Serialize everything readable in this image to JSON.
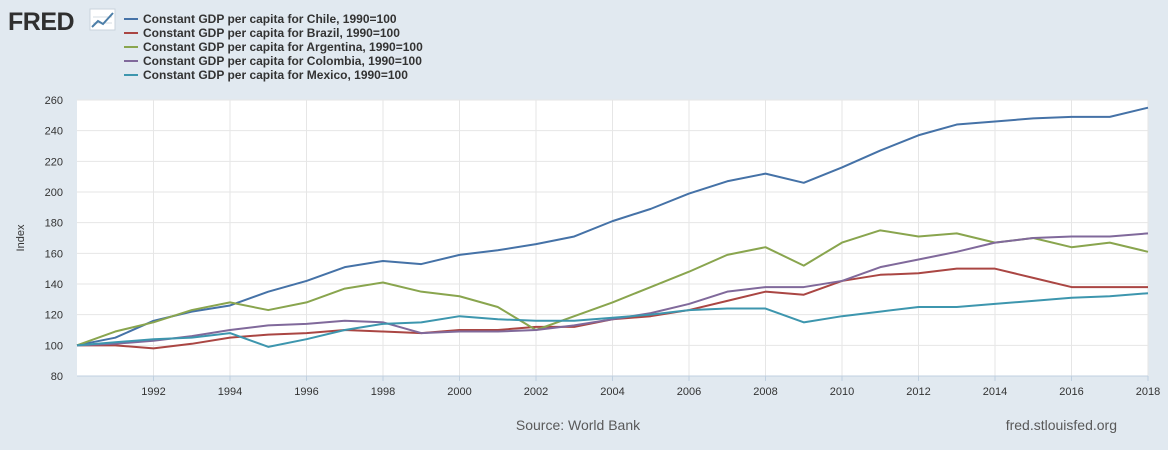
{
  "logo": {
    "text": "FRED",
    "icon": "line-chart-icon"
  },
  "footer": {
    "source": "Source: World Bank",
    "site": "fred.stlouisfed.org"
  },
  "chart_data": {
    "type": "line",
    "title": "",
    "xlabel": "",
    "ylabel": "Index",
    "xlim": [
      1990,
      2018
    ],
    "ylim": [
      80,
      260
    ],
    "yticks": [
      80,
      100,
      120,
      140,
      160,
      180,
      200,
      220,
      240,
      260
    ],
    "xticks": [
      1992,
      1994,
      1996,
      1998,
      2000,
      2002,
      2004,
      2006,
      2008,
      2010,
      2012,
      2014,
      2016,
      2018
    ],
    "grid": true,
    "legend_position": "top-left",
    "x": [
      1990,
      1991,
      1992,
      1993,
      1994,
      1995,
      1996,
      1997,
      1998,
      1999,
      2000,
      2001,
      2002,
      2003,
      2004,
      2005,
      2006,
      2007,
      2008,
      2009,
      2010,
      2011,
      2012,
      2013,
      2014,
      2015,
      2016,
      2017,
      2018
    ],
    "series": [
      {
        "name": "Constant GDP per capita for Chile, 1990=100",
        "color": "#4572a7",
        "values": [
          100,
          105,
          116,
          122,
          126,
          135,
          142,
          151,
          155,
          153,
          159,
          162,
          166,
          171,
          181,
          189,
          199,
          207,
          212,
          206,
          216,
          227,
          237,
          244,
          246,
          248,
          249,
          249,
          255
        ]
      },
      {
        "name": "Constant GDP per capita for Brazil, 1990=100",
        "color": "#aa4643",
        "values": [
          100,
          100,
          98,
          101,
          105,
          107,
          108,
          110,
          109,
          108,
          110,
          110,
          112,
          112,
          117,
          119,
          123,
          129,
          135,
          133,
          142,
          146,
          147,
          150,
          150,
          144,
          138,
          138,
          138
        ]
      },
      {
        "name": "Constant GDP per capita for Argentina, 1990=100",
        "color": "#89a54e",
        "values": [
          100,
          109,
          115,
          123,
          128,
          123,
          128,
          137,
          141,
          135,
          132,
          125,
          110,
          119,
          128,
          138,
          148,
          159,
          164,
          152,
          167,
          175,
          171,
          173,
          167,
          170,
          164,
          167,
          161
        ]
      },
      {
        "name": "Constant GDP per capita for Colombia, 1990=100",
        "color": "#80699b",
        "values": [
          100,
          101,
          103,
          106,
          110,
          113,
          114,
          116,
          115,
          108,
          109,
          109,
          110,
          113,
          117,
          121,
          127,
          135,
          138,
          138,
          142,
          151,
          156,
          161,
          167,
          170,
          171,
          171,
          173
        ]
      },
      {
        "name": "Constant GDP per capita for Mexico, 1990=100",
        "color": "#3d96ae",
        "values": [
          100,
          102,
          104,
          105,
          108,
          99,
          104,
          110,
          114,
          115,
          119,
          117,
          116,
          116,
          118,
          120,
          123,
          124,
          124,
          115,
          119,
          122,
          125,
          125,
          127,
          129,
          131,
          132,
          134
        ]
      }
    ]
  }
}
